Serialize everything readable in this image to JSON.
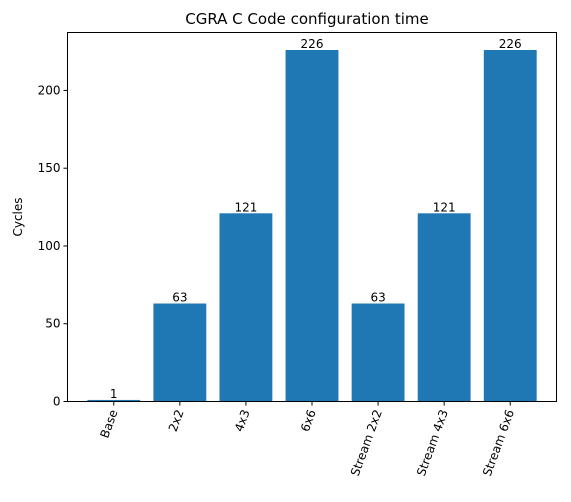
{
  "chart_data": {
    "type": "bar",
    "title": "CGRA C Code configuration time",
    "xlabel": "",
    "ylabel": "Cycles",
    "categories": [
      "Base",
      "2x2",
      "4x3",
      "6x6",
      "Stream 2x2",
      "Stream 4x3",
      "Stream 6x6"
    ],
    "values": [
      1,
      63,
      121,
      226,
      63,
      121,
      226
    ],
    "data_labels": [
      "1",
      "63",
      "121",
      "226",
      "63",
      "121",
      "226"
    ],
    "yticks": [
      0,
      50,
      100,
      150,
      200
    ],
    "ytick_labels": [
      "0",
      "50",
      "100",
      "150",
      "200"
    ],
    "ylim": [
      0,
      237.25
    ],
    "bar_color": "#1f77b4",
    "grid": false,
    "legend": "none",
    "xtick_rotation": "rotated 70 degrees"
  }
}
